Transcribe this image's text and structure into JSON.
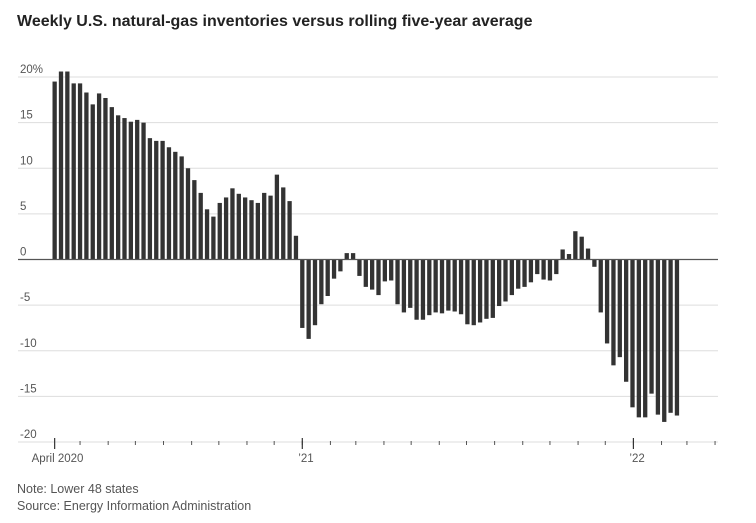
{
  "title": "Weekly U.S. natural-gas inventories versus rolling five-year average",
  "note": "Note: Lower 48 states",
  "source": "Source: Energy Information Administration",
  "chart_data": {
    "type": "bar",
    "title": "Weekly U.S. natural-gas inventories versus rolling five-year average",
    "xlabel": "",
    "ylabel": "",
    "ylim": [
      -20,
      20
    ],
    "yticks": [
      20,
      15,
      10,
      5,
      0,
      -5,
      -10,
      -15,
      -20
    ],
    "ytick_labels": [
      "20%",
      "15",
      "10",
      "5",
      "0",
      "-5",
      "-10",
      "-15",
      "-20"
    ],
    "x_start": "2020-04-03",
    "x_end": "2022-04-08",
    "xtick_labels": [
      {
        "date": "2020-04-03",
        "label": "April 2020"
      },
      {
        "date": "2021-01-01",
        "label": "’21"
      },
      {
        "date": "2022-01-01",
        "label": "’22"
      }
    ],
    "grid": true,
    "bar_color": "#333333",
    "series": [
      {
        "frequency": "weekly",
        "values": [
          19.5,
          20.6,
          20.6,
          19.3,
          19.3,
          18.3,
          17.0,
          18.2,
          17.7,
          16.7,
          15.8,
          15.5,
          15.1,
          15.3,
          15.0,
          13.3,
          13.0,
          13.0,
          12.3,
          11.8,
          11.3,
          10.0,
          8.7,
          7.3,
          5.5,
          4.7,
          6.2,
          6.8,
          7.8,
          7.2,
          6.8,
          6.5,
          6.2,
          7.3,
          7.0,
          9.3,
          7.9,
          6.4,
          2.6,
          -7.5,
          -8.7,
          -7.2,
          -4.9,
          -4.0,
          -2.1,
          -1.3,
          0.7,
          0.7,
          -1.8,
          -3.0,
          -3.3,
          -3.9,
          -2.4,
          -2.3,
          -4.9,
          -5.8,
          -5.3,
          -6.6,
          -6.6,
          -6.1,
          -5.8,
          -5.9,
          -5.6,
          -5.7,
          -6.0,
          -7.1,
          -7.2,
          -6.9,
          -6.5,
          -6.4,
          -5.1,
          -4.6,
          -3.9,
          -3.2,
          -3.0,
          -2.5,
          -1.6,
          -2.2,
          -2.3,
          -1.6,
          1.1,
          0.6,
          3.1,
          2.5,
          1.2,
          -0.8,
          -5.8,
          -9.2,
          -11.6,
          -10.7,
          -13.4,
          -16.2,
          -17.3,
          -17.3,
          -14.7,
          -17.0,
          -17.8,
          -16.8,
          -17.1
        ]
      }
    ]
  }
}
